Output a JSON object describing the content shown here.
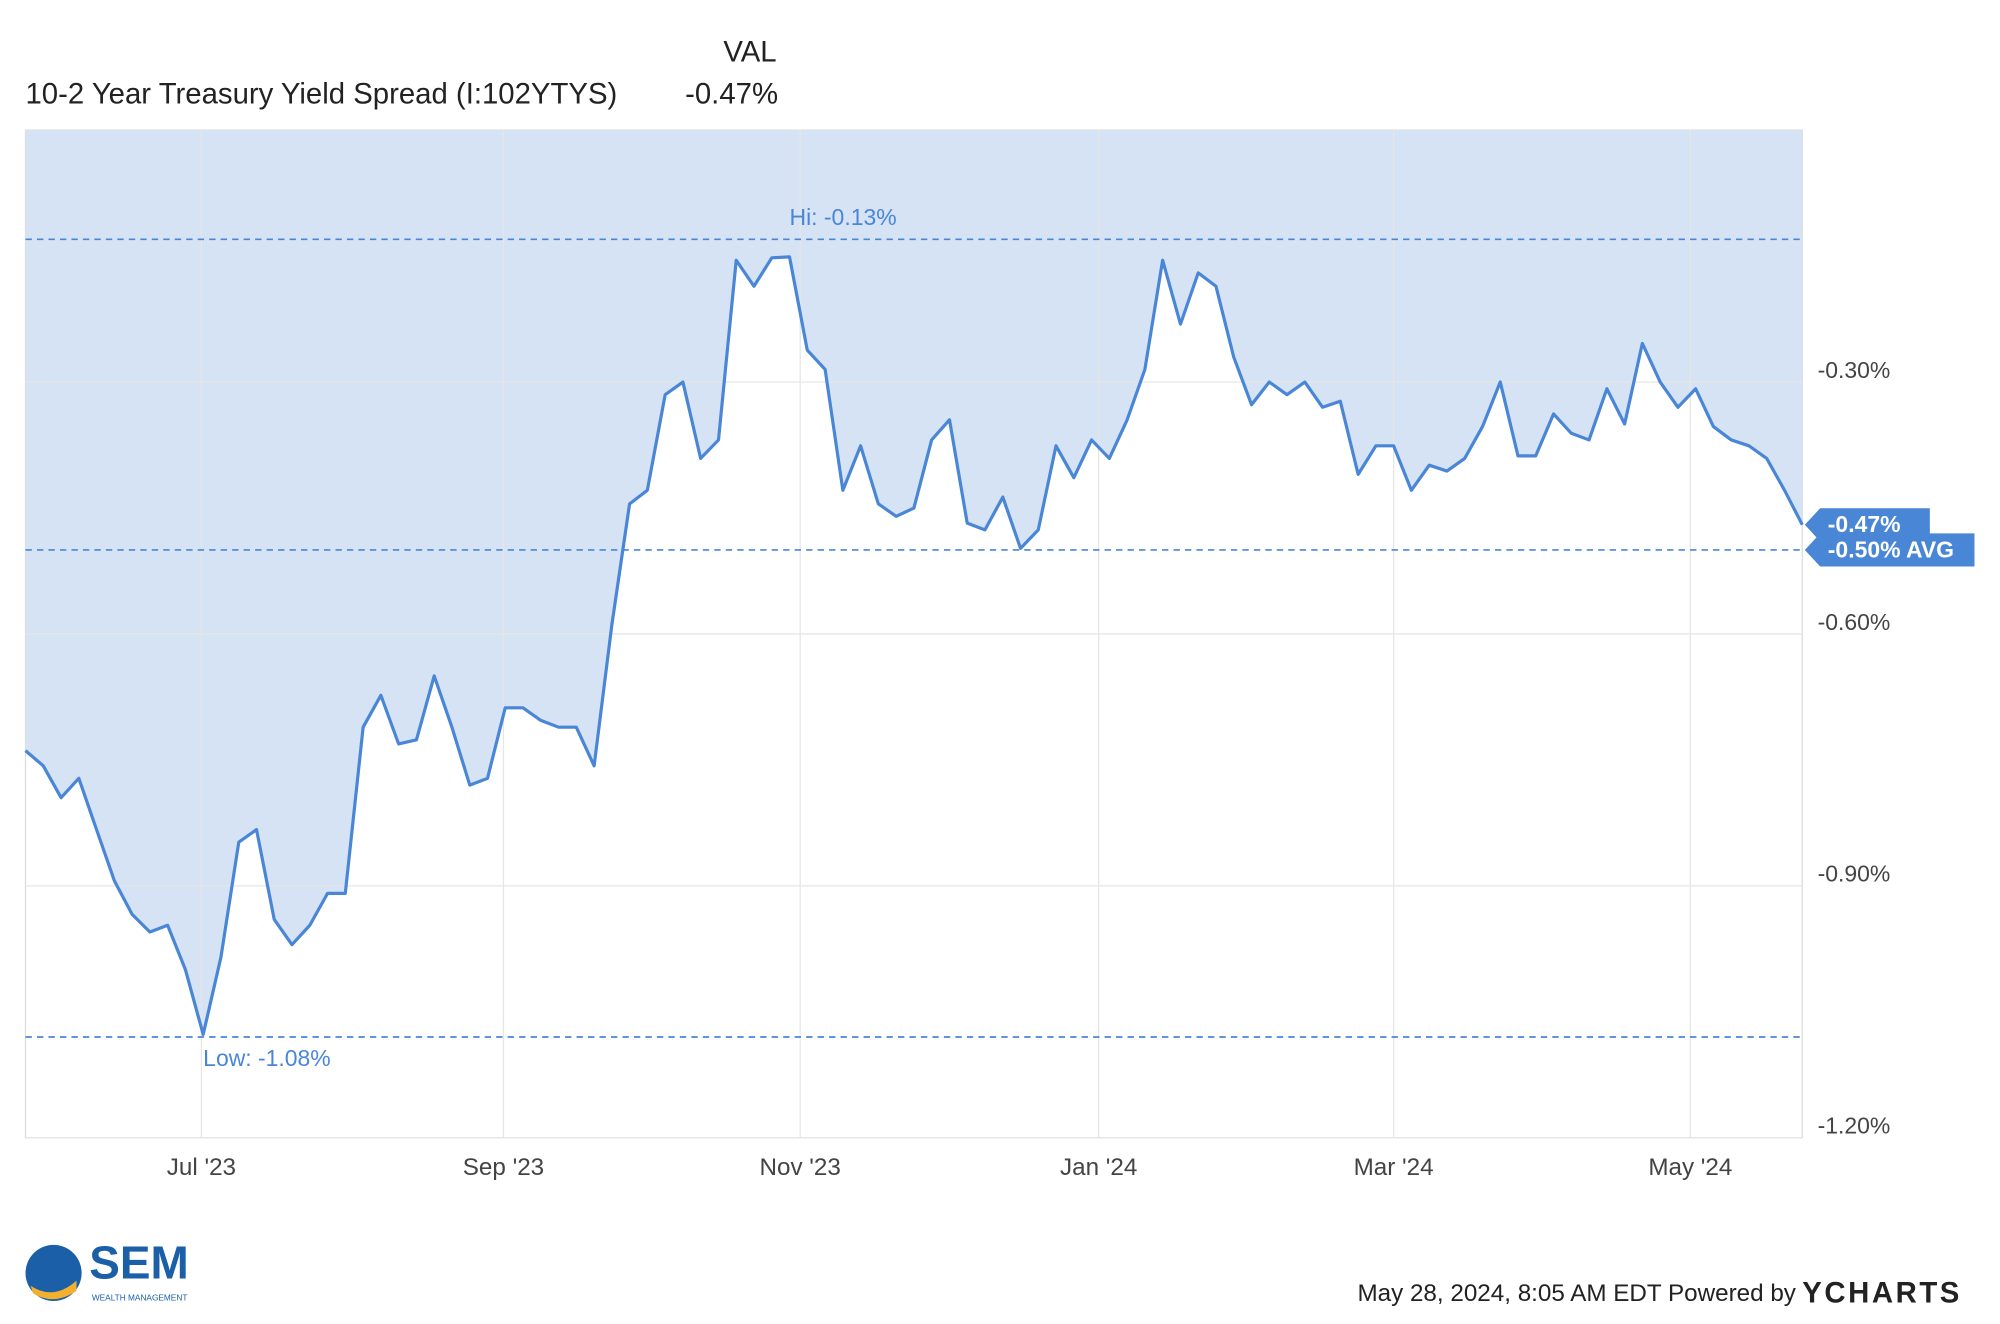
{
  "chart_data": {
    "type": "line",
    "header": "VAL",
    "series_name": "10-2 Year Treasury Yield Spread (I:102YTYS)",
    "current": {
      "value": -0.47,
      "label": "-0.47%"
    },
    "color": "#4a86d6",
    "area_color": "#d5e3f5",
    "values": [
      -0.739,
      -0.757,
      -0.795,
      -0.772,
      -0.833,
      -0.894,
      -0.934,
      -0.955,
      -0.947,
      -1.0,
      -1.077,
      -0.985,
      -0.848,
      -0.833,
      -0.94,
      -0.97,
      -0.947,
      -0.909,
      -0.909,
      -0.711,
      -0.673,
      -0.731,
      -0.726,
      -0.65,
      -0.711,
      -0.78,
      -0.772,
      -0.688,
      -0.688,
      -0.703,
      -0.711,
      -0.711,
      -0.757,
      -0.589,
      -0.445,
      -0.429,
      -0.315,
      -0.3,
      -0.391,
      -0.369,
      -0.155,
      -0.186,
      -0.152,
      -0.151,
      -0.262,
      -0.285,
      -0.429,
      -0.376,
      -0.445,
      -0.46,
      -0.45,
      -0.369,
      -0.345,
      -0.468,
      -0.476,
      -0.437,
      -0.498,
      -0.476,
      -0.376,
      -0.414,
      -0.369,
      -0.391,
      -0.345,
      -0.285,
      -0.155,
      -0.231,
      -0.17,
      -0.186,
      -0.27,
      -0.327,
      -0.3,
      -0.315,
      -0.3,
      -0.33,
      -0.323,
      -0.41,
      -0.376,
      -0.376,
      -0.429,
      -0.399,
      -0.406,
      -0.391,
      -0.353,
      -0.3,
      -0.388,
      -0.388,
      -0.338,
      -0.361,
      -0.369,
      -0.308,
      -0.35,
      -0.254,
      -0.3,
      -0.33,
      -0.308,
      -0.353,
      -0.369,
      -0.376,
      -0.391,
      -0.429,
      -0.47
    ],
    "xlim": [
      0,
      100
    ],
    "xticks": [
      {
        "value": 9.9,
        "label": "Jul '23"
      },
      {
        "value": 26.9,
        "label": "Sep '23"
      },
      {
        "value": 43.6,
        "label": "Nov '23"
      },
      {
        "value": 60.4,
        "label": "Jan '24"
      },
      {
        "value": 77.0,
        "label": "Mar '24"
      },
      {
        "value": 93.7,
        "label": "May '24"
      }
    ],
    "ylim": [
      -1.2,
      0.0
    ],
    "yticks": [
      {
        "value": -0.3,
        "label": "-0.30%"
      },
      {
        "value": -0.6,
        "label": "-0.60%"
      },
      {
        "value": -0.9,
        "label": "-0.90%"
      },
      {
        "value": -1.2,
        "label": "-1.20%"
      }
    ],
    "grid": true,
    "reference_lines": [
      {
        "value": -0.13,
        "label": "Hi: -0.13%"
      },
      {
        "value": -1.08,
        "label": "Low: -1.08%"
      },
      {
        "value": -0.5,
        "label": "-0.50% AVG"
      }
    ]
  },
  "logo": {
    "name": "SEM",
    "tagline": "WEALTH MANAGEMENT"
  },
  "footer": {
    "timestamp": "May 28, 2024, 8:05 AM EDT Powered by",
    "brand": "YCHARTS"
  }
}
